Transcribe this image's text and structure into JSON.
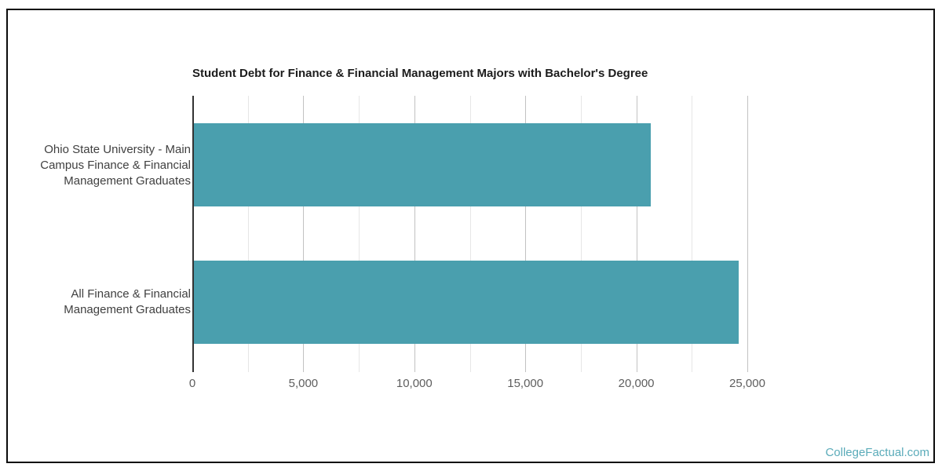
{
  "page": {
    "background": "#ffffff",
    "frame_border_color": "#0b0b0b"
  },
  "chart_data": {
    "type": "bar",
    "orientation": "horizontal",
    "title": "Student Debt for Finance & Financial Management Majors with Bachelor's Degree",
    "categories": [
      "Ohio State University - Main Campus Finance & Financial Management Graduates",
      "All Finance & Financial Management Graduates"
    ],
    "values": [
      20570,
      24530
    ],
    "xlabel": "",
    "ylabel": "",
    "xlim": [
      0,
      25000
    ],
    "x_ticks": [
      0,
      5000,
      10000,
      15000,
      20000,
      25000
    ],
    "x_tick_labels": [
      "0",
      "5,000",
      "10,000",
      "15,000",
      "20,000",
      "25,000"
    ],
    "minor_gridline_step": 2500,
    "major_gridline_step": 5000,
    "grid": true,
    "legend": "none",
    "bar_color": "#4A9FAE",
    "axis_line_color": "#333333",
    "major_gridline_color": "#c2c2c2",
    "minor_gridline_color": "#e6e6e6",
    "title_color": "#1c1c1c",
    "category_label_color": "#404040",
    "tick_label_color": "#5e5e5e"
  },
  "watermark": {
    "text": "CollegeFactual.com",
    "color": "#5aabb9"
  }
}
